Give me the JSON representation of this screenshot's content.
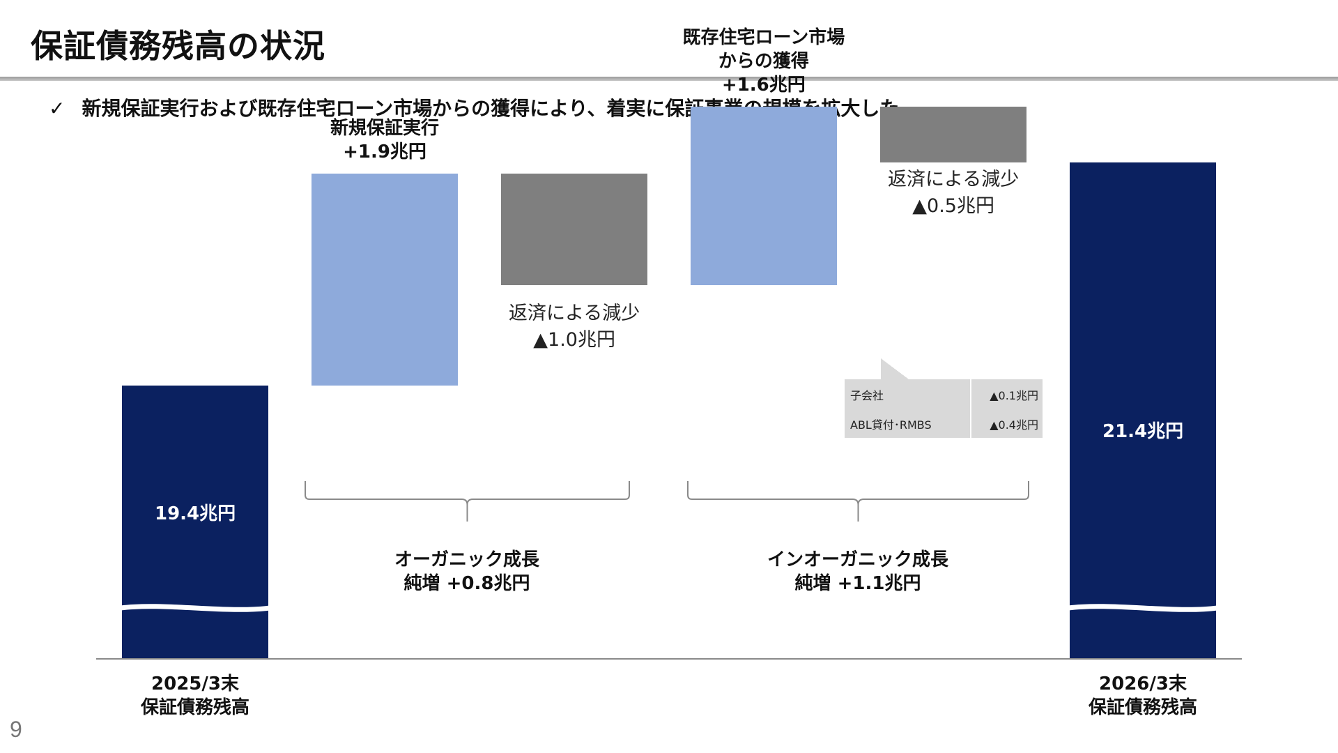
{
  "header": {
    "title": "保証債務残高の状況",
    "bullet_check": "✓",
    "bullet_text": "新規保証実行および既存住宅ローン市場からの獲得により、着実に保証事業の規模を拡大した"
  },
  "page_number": "9",
  "chart_data": {
    "type": "waterfall",
    "unit": "兆円",
    "steps": [
      {
        "category": "2025/3末 保証債務残高",
        "kind": "total",
        "value": 19.4,
        "label": "19.4兆円",
        "axis_label_line1": "2025/3末",
        "axis_label_line2": "保証債務残高"
      },
      {
        "category": "新規保証実行",
        "kind": "increase",
        "value": 1.9,
        "label_line1": "新規保証実行",
        "label_line2": "+1.9兆円"
      },
      {
        "category": "返済による減少",
        "kind": "decrease",
        "value": -1.0,
        "label_line1": "返済による減少",
        "label_line2": "▲1.0兆円"
      },
      {
        "category": "既存住宅ローン市場からの獲得",
        "kind": "increase",
        "value": 1.6,
        "label_line1": "既存住宅ローン市場",
        "label_line2": "からの獲得",
        "label_line3": "+1.6兆円"
      },
      {
        "category": "返済による減少",
        "kind": "decrease",
        "value": -0.5,
        "label_line1": "返済による減少",
        "label_line2": "▲0.5兆円"
      },
      {
        "category": "2026/3末 保証債務残高",
        "kind": "total",
        "value": 21.4,
        "label": "21.4兆円",
        "axis_label_line1": "2026/3末",
        "axis_label_line2": "保証債務残高"
      }
    ],
    "breakdown": [
      {
        "name": "子会社",
        "value": "▲0.1兆円"
      },
      {
        "name": "ABL貸付･RMBS",
        "value": "▲0.4兆円"
      }
    ],
    "groups": [
      {
        "label_line1": "オーガニック成長",
        "label_line2": "純増 +0.8兆円",
        "net": 0.8
      },
      {
        "label_line1": "インオーガニック成長",
        "label_line2": "純増 +1.1兆円",
        "net": 1.1
      }
    ],
    "colors": {
      "total": "#0b2160",
      "increase": "#8eaadb",
      "decrease": "#7f7f7f"
    },
    "axis_break": true
  }
}
